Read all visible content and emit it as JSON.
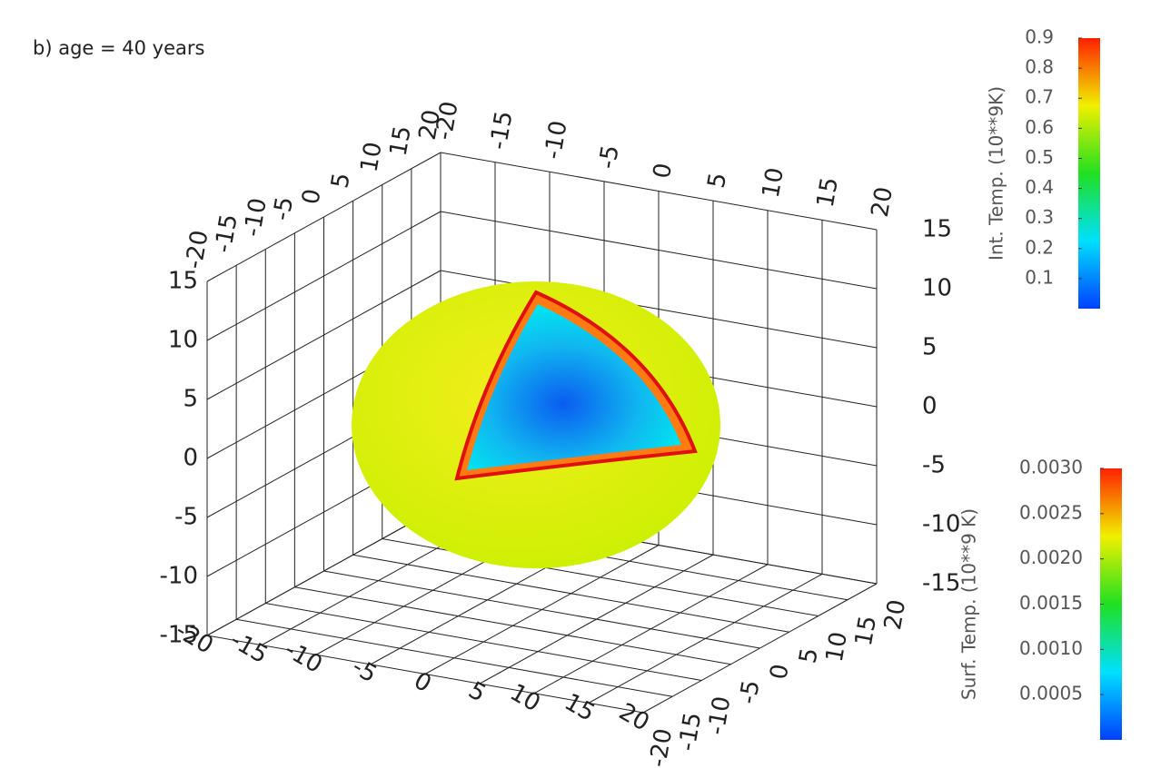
{
  "chart_data": {
    "type": "surface3d",
    "title": "b) age = 40 years",
    "xlim": [
      -20,
      20
    ],
    "ylim": [
      -20,
      20
    ],
    "zlim": [
      -15,
      15
    ],
    "xticks": [
      -20,
      -15,
      -10,
      -5,
      0,
      5,
      10,
      15,
      20
    ],
    "yticks": [
      -20,
      -15,
      -10,
      -5,
      0,
      5,
      10,
      15,
      20
    ],
    "zticks": [
      -15,
      -10,
      -5,
      0,
      5,
      10,
      15
    ],
    "grid": true,
    "colorbars": [
      {
        "label": "Int. Temp. (10**9K)",
        "lim": [
          0,
          0.9
        ],
        "ticks": [
          0.1,
          0.2,
          0.3,
          0.4,
          0.5,
          0.6,
          0.7,
          0.8,
          0.9
        ],
        "colors": [
          "#0040ff",
          "#00e0ff",
          "#20e020",
          "#f0f000",
          "#ff2000"
        ]
      },
      {
        "label": "Surf. Temp. (10**9 K)",
        "lim": [
          0,
          0.003
        ],
        "ticks": [
          {
            "value": 0.0005,
            "label": "0.0005"
          },
          {
            "value": 0.001,
            "label": "0.0010"
          },
          {
            "value": 0.0015,
            "label": "0.0015"
          },
          {
            "value": 0.002,
            "label": "0.0020"
          },
          {
            "value": 0.0025,
            "label": "0.0025"
          },
          {
            "value": 0.003,
            "label": "0.0030"
          }
        ],
        "colors": [
          "#0040ff",
          "#00e0ff",
          "#20e020",
          "#f0f000",
          "#ff2000"
        ]
      }
    ]
  }
}
